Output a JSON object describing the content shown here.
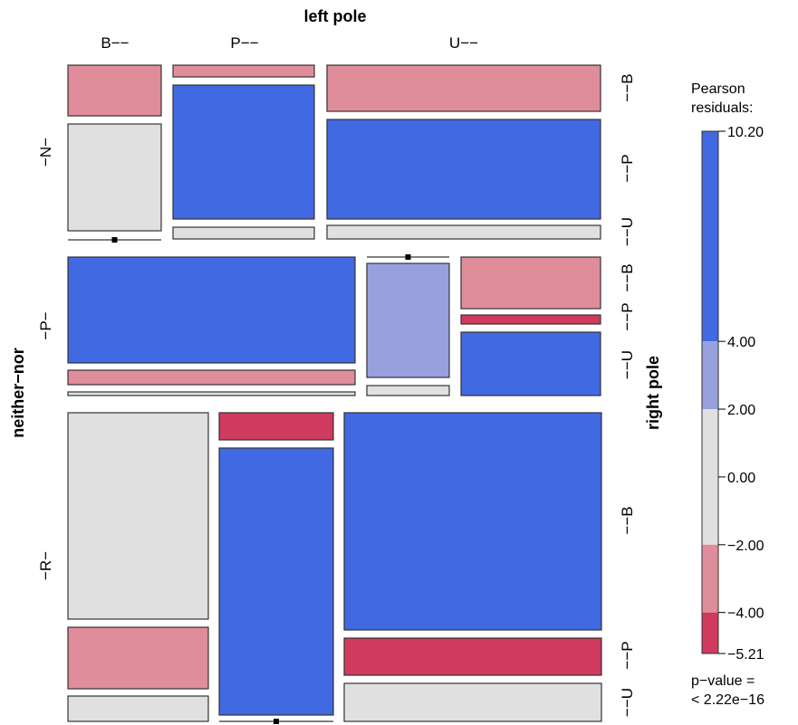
{
  "chart_data": {
    "type": "mosaic",
    "colors": {
      "strong_pos": "#4169E1",
      "mild_pos": "#98A1DE",
      "neutral": "#E0E0E0",
      "mild_neg": "#E08D9B",
      "strong_neg": "#D03A5F",
      "border": "#333333"
    },
    "axes": {
      "top_title": "left pole",
      "left_title": "neither−nor",
      "right_title": "right pole"
    },
    "top_labels": [
      "B−−",
      "P−−",
      "U−−"
    ],
    "left_labels": [
      "−N−",
      "−P−",
      "−R−"
    ],
    "right_labels": [
      [
        "−−B",
        "−−P",
        "−−U"
      ],
      [
        "−−B",
        "−−P",
        "−−U"
      ],
      [
        "−−B",
        "−−P",
        "−−U"
      ]
    ],
    "cells": [
      {
        "neither_nor": "N",
        "left": "B",
        "right": "B",
        "residual_class": "mild_neg"
      },
      {
        "neither_nor": "N",
        "left": "B",
        "right": "P",
        "residual_class": "neutral"
      },
      {
        "neither_nor": "N",
        "left": "B",
        "right": "U",
        "residual_class": "empty"
      },
      {
        "neither_nor": "N",
        "left": "P",
        "right": "B",
        "residual_class": "mild_neg"
      },
      {
        "neither_nor": "N",
        "left": "P",
        "right": "P",
        "residual_class": "strong_pos"
      },
      {
        "neither_nor": "N",
        "left": "P",
        "right": "U",
        "residual_class": "neutral"
      },
      {
        "neither_nor": "N",
        "left": "U",
        "right": "B",
        "residual_class": "mild_neg"
      },
      {
        "neither_nor": "N",
        "left": "U",
        "right": "P",
        "residual_class": "strong_pos"
      },
      {
        "neither_nor": "N",
        "left": "U",
        "right": "U",
        "residual_class": "neutral"
      },
      {
        "neither_nor": "P",
        "left": "B",
        "right": "B",
        "residual_class": "strong_pos"
      },
      {
        "neither_nor": "P",
        "left": "B",
        "right": "P",
        "residual_class": "mild_neg"
      },
      {
        "neither_nor": "P",
        "left": "B",
        "right": "U",
        "residual_class": "neutral"
      },
      {
        "neither_nor": "P",
        "left": "P",
        "right": "B",
        "residual_class": "empty"
      },
      {
        "neither_nor": "P",
        "left": "P",
        "right": "P",
        "residual_class": "mild_pos"
      },
      {
        "neither_nor": "P",
        "left": "P",
        "right": "U",
        "residual_class": "neutral"
      },
      {
        "neither_nor": "P",
        "left": "U",
        "right": "B",
        "residual_class": "mild_neg"
      },
      {
        "neither_nor": "P",
        "left": "U",
        "right": "P",
        "residual_class": "strong_neg"
      },
      {
        "neither_nor": "P",
        "left": "U",
        "right": "U",
        "residual_class": "strong_pos"
      },
      {
        "neither_nor": "R",
        "left": "B",
        "right": "B",
        "residual_class": "neutral"
      },
      {
        "neither_nor": "R",
        "left": "B",
        "right": "P",
        "residual_class": "mild_neg"
      },
      {
        "neither_nor": "R",
        "left": "B",
        "right": "U",
        "residual_class": "neutral"
      },
      {
        "neither_nor": "R",
        "left": "P",
        "right": "B",
        "residual_class": "strong_neg"
      },
      {
        "neither_nor": "R",
        "left": "P",
        "right": "P",
        "residual_class": "strong_pos"
      },
      {
        "neither_nor": "R",
        "left": "P",
        "right": "U",
        "residual_class": "empty"
      },
      {
        "neither_nor": "R",
        "left": "U",
        "right": "B",
        "residual_class": "strong_pos"
      },
      {
        "neither_nor": "R",
        "left": "U",
        "right": "P",
        "residual_class": "strong_neg"
      },
      {
        "neither_nor": "R",
        "left": "U",
        "right": "U",
        "residual_class": "neutral"
      }
    ],
    "legend": {
      "title": [
        "Pearson",
        "residuals:"
      ],
      "min": -5.21,
      "max": 10.2,
      "tick_values": [
        10.2,
        4,
        2,
        0,
        -2,
        -4,
        -5.21
      ],
      "tick_labels": [
        "10.20",
        "4.00",
        "2.00",
        "0.00",
        "−2.00",
        "−4.00",
        "−5.21"
      ],
      "bands": [
        {
          "from": 4,
          "to": 10.2,
          "class": "strong_pos"
        },
        {
          "from": 2,
          "to": 4,
          "class": "mild_pos"
        },
        {
          "from": -2,
          "to": 2,
          "class": "neutral"
        },
        {
          "from": -4,
          "to": -2,
          "class": "mild_neg"
        },
        {
          "from": -5.21,
          "to": -4,
          "class": "strong_neg"
        }
      ],
      "pvalue": [
        "p−value =",
        "< 2.22e−16"
      ]
    }
  }
}
